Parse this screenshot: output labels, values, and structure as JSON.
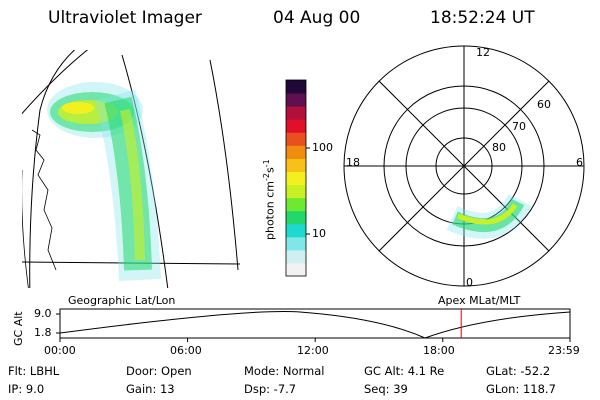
{
  "header": {
    "instrument": "Ultraviolet Imager",
    "date": "04 Aug 00",
    "time": "18:52:24 UT"
  },
  "geo_panel": {
    "label": "Geographic Lat/Lon"
  },
  "colorbar": {
    "unit": "photon cm^-2 s^-1",
    "unit_main": "photon cm",
    "unit_sup1": "-2",
    "unit_s": "s",
    "unit_sup2": "-1",
    "tick_100": "100",
    "tick_10": "10",
    "colors": [
      "#f2f2f2",
      "#cfeff3",
      "#7fe6ea",
      "#1fd8d0",
      "#22d86a",
      "#6ee830",
      "#c8f024",
      "#f4f020",
      "#f8c018",
      "#f08c10",
      "#e85020",
      "#e0102a",
      "#b0103a",
      "#601050",
      "#200838"
    ]
  },
  "polar_plot": {
    "label": "Apex MLat/MLT",
    "mlt_12": "12",
    "mlt_18": "18",
    "mlt_6": "6",
    "mlt_0": "0",
    "lat_60": "60",
    "lat_70": "70",
    "lat_80": "80"
  },
  "timeline": {
    "ylabel": "GC Alt",
    "ytick_top": "9.0",
    "ytick_bottom": "1.8",
    "xticks": [
      "00:00",
      "06:00",
      "12:00",
      "18:00",
      "23:59"
    ],
    "marker_time": "18:52",
    "marker_color": "#e00000"
  },
  "info": {
    "filter": "Flt: LBHL",
    "ip": "IP:  9.0",
    "door": "Door: Open",
    "gain": "Gain: 13",
    "mode": "Mode: Normal",
    "dsp": "Dsp:   -7.7",
    "gcalt": "GC Alt: 4.1 Re",
    "seq": "Seq: 39",
    "glat": "GLat: -52.2",
    "glon": "GLon: 118.7"
  }
}
